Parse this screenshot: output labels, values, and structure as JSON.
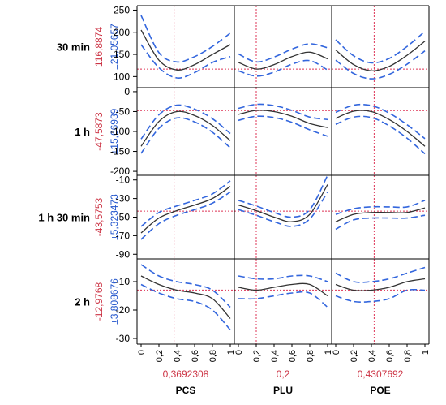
{
  "chart_data": {
    "type": "line",
    "title": "",
    "columns": [
      {
        "factor": "PCS",
        "current_value_label": "0,3692308",
        "current_value": 0.3692308
      },
      {
        "factor": "PLU",
        "current_value_label": "0,2",
        "current_value": 0.2
      },
      {
        "factor": "POE",
        "current_value_label": "0,4307692",
        "current_value": 0.4307692
      }
    ],
    "x_ticks": [
      "0",
      "0,2",
      "0,4",
      "0,6",
      "0,8",
      "1"
    ],
    "xlim": [
      0,
      1
    ],
    "rows": [
      {
        "response": "30 min",
        "predicted_label": "116,8874",
        "ci_label": "±21,05657",
        "predicted": 116.8874,
        "ylim": [
          75,
          260
        ],
        "y_ticks": [
          "250",
          "200",
          "150",
          "100"
        ],
        "y_tick_values": [
          250,
          200,
          150,
          100
        ]
      },
      {
        "response": "1 h",
        "predicted_label": "-47,5873",
        "ci_label": "±15,66939",
        "predicted": -47.5873,
        "ylim": [
          -210,
          10
        ],
        "y_ticks": [
          "0",
          "-50",
          "-100",
          "-150",
          "-200"
        ],
        "y_tick_values": [
          0,
          -50,
          -100,
          -150,
          -200
        ]
      },
      {
        "response": "1 h 30 min",
        "predicted_label": "-43,5753",
        "ci_label": "±5,323473",
        "predicted": -43.5753,
        "ylim": [
          -95,
          -5
        ],
        "y_ticks": [
          "-10",
          "-30",
          "-50",
          "-70",
          "-90"
        ],
        "y_tick_values": [
          -10,
          -30,
          -50,
          -70,
          -90
        ]
      },
      {
        "response": "2 h",
        "predicted_label": "-12,9768",
        "ci_label": "±3,808676",
        "predicted": -12.9768,
        "ylim": [
          -32,
          -2
        ],
        "y_ticks": [
          "-10",
          "-20",
          "-30"
        ],
        "y_tick_values": [
          -10,
          -20,
          -30
        ]
      }
    ],
    "series": [
      {
        "row": 0,
        "col": 0,
        "x": [
          0,
          0.2,
          0.4,
          0.6,
          0.8,
          1
        ],
        "y": [
          205,
          137,
          115,
          127,
          150,
          172
        ],
        "ci": [
          [
            172,
            238
          ],
          [
            120,
            154
          ],
          [
            97,
            133
          ],
          [
            109,
            145
          ],
          [
            132,
            168
          ],
          [
            145,
            198
          ]
        ]
      },
      {
        "row": 0,
        "col": 1,
        "x": [
          0,
          0.2,
          0.4,
          0.6,
          0.8,
          1
        ],
        "y": [
          132,
          117,
          127,
          145,
          155,
          140
        ],
        "ci": [
          [
            113,
            151
          ],
          [
            101,
            133
          ],
          [
            110,
            144
          ],
          [
            128,
            162
          ],
          [
            136,
            174
          ],
          [
            115,
            165
          ]
        ]
      },
      {
        "row": 0,
        "col": 2,
        "x": [
          0,
          0.2,
          0.4,
          0.6,
          0.8,
          1
        ],
        "y": [
          160,
          127,
          113,
          123,
          148,
          180
        ],
        "ci": [
          [
            137,
            183
          ],
          [
            107,
            147
          ],
          [
            95,
            131
          ],
          [
            105,
            141
          ],
          [
            128,
            168
          ],
          [
            158,
            202
          ]
        ]
      },
      {
        "row": 1,
        "col": 0,
        "x": [
          0,
          0.2,
          0.4,
          0.6,
          0.8,
          1
        ],
        "y": [
          -137,
          -75,
          -50,
          -60,
          -85,
          -123
        ],
        "ci": [
          [
            -155,
            -119
          ],
          [
            -92,
            -58
          ],
          [
            -66,
            -34
          ],
          [
            -76,
            -44
          ],
          [
            -102,
            -68
          ],
          [
            -141,
            -105
          ]
        ]
      },
      {
        "row": 1,
        "col": 1,
        "x": [
          0,
          0.2,
          0.4,
          0.6,
          0.8,
          1
        ],
        "y": [
          -57,
          -47,
          -50,
          -62,
          -80,
          -90
        ],
        "ci": [
          [
            -72,
            -42
          ],
          [
            -62,
            -32
          ],
          [
            -65,
            -35
          ],
          [
            -77,
            -47
          ],
          [
            -96,
            -64
          ],
          [
            -112,
            -70
          ]
        ]
      },
      {
        "row": 1,
        "col": 2,
        "x": [
          0,
          0.2,
          0.4,
          0.6,
          0.8,
          1
        ],
        "y": [
          -67,
          -49,
          -50,
          -70,
          -100,
          -137
        ],
        "ci": [
          [
            -82,
            -52
          ],
          [
            -64,
            -34
          ],
          [
            -65,
            -35
          ],
          [
            -86,
            -54
          ],
          [
            -117,
            -83
          ],
          [
            -156,
            -118
          ]
        ]
      },
      {
        "row": 2,
        "col": 0,
        "x": [
          0,
          0.2,
          0.4,
          0.6,
          0.8,
          1
        ],
        "y": [
          -67,
          -51,
          -43,
          -37,
          -30,
          -17
        ],
        "ci": [
          [
            -74,
            -60
          ],
          [
            -57,
            -45
          ],
          [
            -48,
            -38
          ],
          [
            -42,
            -32
          ],
          [
            -35,
            -25
          ],
          [
            -23,
            -11
          ]
        ]
      },
      {
        "row": 2,
        "col": 1,
        "x": [
          0,
          0.2,
          0.4,
          0.6,
          0.8,
          1
        ],
        "y": [
          -37,
          -43,
          -50,
          -55,
          -47,
          -15
        ],
        "ci": [
          [
            -42,
            -32
          ],
          [
            -48,
            -38
          ],
          [
            -55,
            -45
          ],
          [
            -60,
            -50
          ],
          [
            -52,
            -42
          ],
          [
            -23,
            -5
          ]
        ]
      },
      {
        "row": 2,
        "col": 2,
        "x": [
          0,
          0.2,
          0.4,
          0.6,
          0.8,
          1
        ],
        "y": [
          -55,
          -47,
          -45,
          -45,
          -45,
          -40
        ],
        "ci": [
          [
            -63,
            -47
          ],
          [
            -53,
            -41
          ],
          [
            -51,
            -39
          ],
          [
            -51,
            -39
          ],
          [
            -51,
            -39
          ],
          [
            -48,
            -32
          ]
        ]
      },
      {
        "row": 3,
        "col": 0,
        "x": [
          0,
          0.2,
          0.4,
          0.6,
          0.8,
          1
        ],
        "y": [
          -8,
          -11,
          -13,
          -14,
          -16,
          -23
        ],
        "ci": [
          [
            -11,
            -4
          ],
          [
            -14,
            -8
          ],
          [
            -16,
            -10
          ],
          [
            -17,
            -11
          ],
          [
            -20,
            -13
          ],
          [
            -27,
            -19
          ]
        ]
      },
      {
        "row": 3,
        "col": 1,
        "x": [
          0,
          0.2,
          0.4,
          0.6,
          0.8,
          1
        ],
        "y": [
          -12,
          -13,
          -12,
          -11,
          -11,
          -15
        ],
        "ci": [
          [
            -16,
            -8
          ],
          [
            -16,
            -9
          ],
          [
            -15,
            -9
          ],
          [
            -14,
            -8
          ],
          [
            -14,
            -8
          ],
          [
            -19,
            -10
          ]
        ]
      },
      {
        "row": 3,
        "col": 2,
        "x": [
          0,
          0.2,
          0.4,
          0.6,
          0.8,
          1
        ],
        "y": [
          -11,
          -13,
          -13,
          -12,
          -10,
          -9
        ],
        "ci": [
          [
            -15,
            -7
          ],
          [
            -17,
            -10
          ],
          [
            -17,
            -10
          ],
          [
            -16,
            -9
          ],
          [
            -13,
            -7
          ],
          [
            -13,
            -5
          ]
        ]
      }
    ],
    "colors": {
      "prediction": "#333333",
      "ci": "#3366dd",
      "crosshair": "#dd3355",
      "frame": "#000000"
    },
    "grid": false
  }
}
